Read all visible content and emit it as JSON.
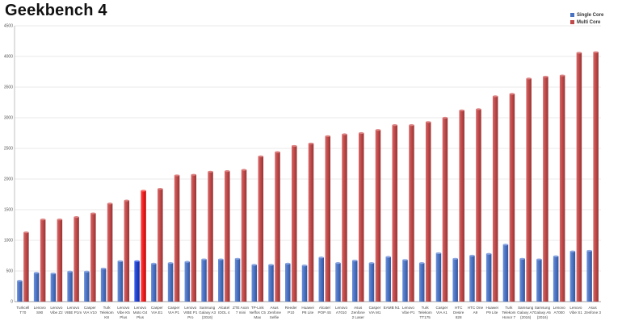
{
  "chart_data": {
    "type": "bar",
    "title": "Geekbench 4",
    "xlabel": "",
    "ylabel": "",
    "ylim": [
      0,
      4500
    ],
    "yticks": [
      0,
      500,
      1000,
      1500,
      2000,
      2500,
      3000,
      3500,
      4000,
      4500
    ],
    "grid": true,
    "legend_position": "top-right",
    "categories": [
      [
        "Turkcell",
        "T70"
      ],
      [
        "Lenovo",
        "S90"
      ],
      [
        "Lenovo",
        "Vibe Z2"
      ],
      [
        "Lenovo",
        "VIBE P1m"
      ],
      [
        "Casper",
        "VIA V10"
      ],
      [
        "Turk",
        "Telekom",
        "K8"
      ],
      [
        "Lenovo",
        "Vibe K5",
        "Plus"
      ],
      [
        "Lenovo",
        "Moto G4",
        "Plus"
      ],
      [
        "Casper",
        "VIA E1"
      ],
      [
        "Casper",
        "VIA P1"
      ],
      [
        "Lenovo",
        "VIBE P1",
        "Pro"
      ],
      [
        "Samsung",
        "Galaxy A3",
        "(2016)"
      ],
      [
        "Alcatel",
        "IDOL 4"
      ],
      [
        "ZTE Axon",
        "7 mini"
      ],
      [
        "TP-Link",
        "Neffos C5",
        "Max"
      ],
      [
        "Asus",
        "Zenfone",
        "Selfie"
      ],
      [
        "Reeder",
        "P10"
      ],
      [
        "Huawei",
        "P8 Lite"
      ],
      [
        "Alcatel",
        "POP 4S"
      ],
      [
        "Lenovo",
        "A7010"
      ],
      [
        "Asus",
        "Zenfone",
        "2 Laser"
      ],
      [
        "Casper",
        "VIA M1"
      ],
      [
        "EAMB N1"
      ],
      [
        "Lenovo",
        "Vibe P1"
      ],
      [
        "Turk",
        "Telekom",
        "TT175"
      ],
      [
        "Casper",
        "VIA A1"
      ],
      [
        "HTC",
        "Desire",
        "828"
      ],
      [
        "HTC One",
        "A9"
      ],
      [
        "Huawei",
        "P9 Lite"
      ],
      [
        "Turk",
        "Telekom",
        "Honor 7"
      ],
      [
        "Samsung",
        "Galaxy A7",
        "(2016)"
      ],
      [
        "Samsung",
        "Galaxy A5",
        "(2016)"
      ],
      [
        "Lenovo",
        "A7000"
      ],
      [
        "Lenovo",
        "Vibe S1"
      ],
      [
        "Asus",
        "Zenfone 3"
      ]
    ],
    "highlight_index": 7,
    "series": [
      {
        "name": "Single Core",
        "color": "#4a72c2",
        "highlight_color": "#1f3fcf",
        "values": [
          340,
          470,
          460,
          490,
          490,
          540,
          660,
          660,
          620,
          630,
          650,
          690,
          690,
          700,
          600,
          600,
          620,
          590,
          720,
          630,
          670,
          630,
          730,
          680,
          630,
          790,
          700,
          750,
          780,
          930,
          700,
          690,
          740,
          820,
          830
        ]
      },
      {
        "name": "Multi Core",
        "color": "#bf4848",
        "highlight_color": "#ee1c1c",
        "values": [
          1130,
          1340,
          1340,
          1380,
          1440,
          1600,
          1650,
          1810,
          1840,
          2060,
          2070,
          2120,
          2130,
          2150,
          2370,
          2440,
          2540,
          2580,
          2700,
          2730,
          2750,
          2800,
          2880,
          2880,
          2930,
          3000,
          3120,
          3140,
          3350,
          3390,
          3640,
          3670,
          3690,
          4060,
          4070
        ]
      }
    ]
  }
}
